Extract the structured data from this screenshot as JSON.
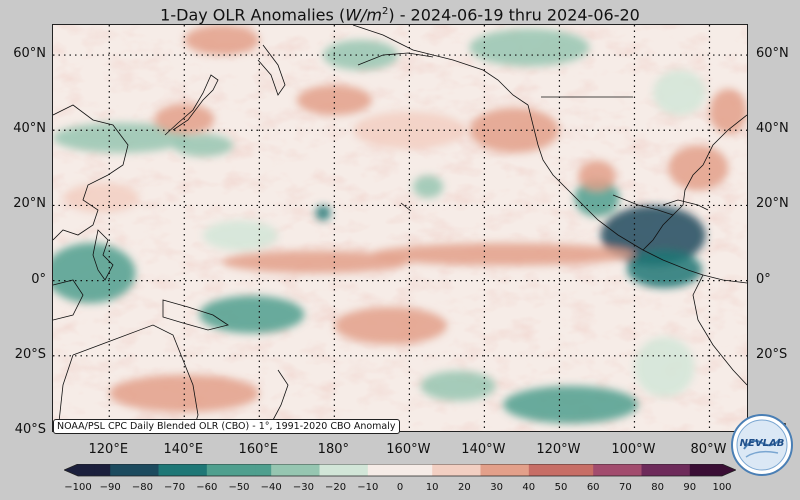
{
  "title": {
    "prefix": "1-Day OLR Anomalies (",
    "unit_base": "W/m",
    "unit_exp": "2",
    "suffix": ") - 2024-06-19 thru 2024-06-20"
  },
  "map": {
    "projection": "equirectangular",
    "lon_range": [
      105,
      290
    ],
    "lat_range": [
      -40,
      68
    ],
    "gridlines": "dotted",
    "source_note": "NOAA/PSL CPC Daily Blended OLR (CBO) - 1°, 1991-2020 CBO Anomaly",
    "lat_ticks": [
      {
        "lat": 60,
        "label": "60°N"
      },
      {
        "lat": 40,
        "label": "40°N"
      },
      {
        "lat": 20,
        "label": "20°N"
      },
      {
        "lat": 0,
        "label": "0°"
      },
      {
        "lat": -20,
        "label": "20°S"
      },
      {
        "lat": -40,
        "label": "40°S"
      }
    ],
    "lon_ticks": [
      {
        "lon": 120,
        "label": "120°E"
      },
      {
        "lon": 140,
        "label": "140°E"
      },
      {
        "lon": 160,
        "label": "160°E"
      },
      {
        "lon": 180,
        "label": "180°"
      },
      {
        "lon": 200,
        "label": "160°W"
      },
      {
        "lon": 220,
        "label": "140°W"
      },
      {
        "lon": 240,
        "label": "120°W"
      },
      {
        "lon": 260,
        "label": "100°W"
      },
      {
        "lon": 280,
        "label": "80°W"
      }
    ],
    "anomaly_regions": [
      {
        "lon": 265,
        "lat": 12,
        "rx": 14,
        "ry": 8,
        "value": -80
      },
      {
        "lon": 250,
        "lat": 22,
        "rx": 6,
        "ry": 5,
        "value": -50
      },
      {
        "lon": 268,
        "lat": 3,
        "rx": 10,
        "ry": 5,
        "value": -60
      },
      {
        "lon": 158,
        "lat": -9,
        "rx": 14,
        "ry": 5,
        "value": -50
      },
      {
        "lon": 115,
        "lat": 2,
        "rx": 12,
        "ry": 8,
        "value": -50
      },
      {
        "lon": 177,
        "lat": 18,
        "rx": 2,
        "ry": 2,
        "value": -60
      },
      {
        "lon": 123,
        "lat": 38,
        "rx": 18,
        "ry": 4,
        "value": -40
      },
      {
        "lon": 145,
        "lat": 36,
        "rx": 8,
        "ry": 3,
        "value": -40
      },
      {
        "lon": 243,
        "lat": -33,
        "rx": 18,
        "ry": 5,
        "value": -45
      },
      {
        "lon": 213,
        "lat": -28,
        "rx": 10,
        "ry": 4,
        "value": -35
      },
      {
        "lon": 187,
        "lat": 60,
        "rx": 10,
        "ry": 4,
        "value": -30
      },
      {
        "lon": 232,
        "lat": 62,
        "rx": 16,
        "ry": 5,
        "value": -30
      },
      {
        "lon": 205,
        "lat": 25,
        "rx": 4,
        "ry": 3,
        "value": -30
      },
      {
        "lon": 272,
        "lat": 50,
        "rx": 7,
        "ry": 6,
        "value": -20
      },
      {
        "lon": 268,
        "lat": -23,
        "rx": 8,
        "ry": 8,
        "value": -20
      },
      {
        "lon": 155,
        "lat": 12,
        "rx": 10,
        "ry": 4,
        "value": -20
      },
      {
        "lon": 175,
        "lat": 5,
        "rx": 25,
        "ry": 3,
        "value": 40
      },
      {
        "lon": 225,
        "lat": 7,
        "rx": 35,
        "ry": 3,
        "value": 35
      },
      {
        "lon": 150,
        "lat": 64,
        "rx": 10,
        "ry": 4,
        "value": 40
      },
      {
        "lon": 140,
        "lat": 43,
        "rx": 8,
        "ry": 4,
        "value": 30
      },
      {
        "lon": 277,
        "lat": 30,
        "rx": 8,
        "ry": 6,
        "value": 35
      },
      {
        "lon": 285,
        "lat": 45,
        "rx": 5,
        "ry": 6,
        "value": 30
      },
      {
        "lon": 228,
        "lat": 40,
        "rx": 12,
        "ry": 6,
        "value": 25
      },
      {
        "lon": 140,
        "lat": -30,
        "rx": 20,
        "ry": 5,
        "value": 25
      },
      {
        "lon": 195,
        "lat": -12,
        "rx": 15,
        "ry": 5,
        "value": 25
      },
      {
        "lon": 200,
        "lat": 40,
        "rx": 15,
        "ry": 5,
        "value": 20
      },
      {
        "lon": 180,
        "lat": 48,
        "rx": 10,
        "ry": 4,
        "value": 25
      },
      {
        "lon": 118,
        "lat": 22,
        "rx": 10,
        "ry": 4,
        "value": 20
      },
      {
        "lon": 250,
        "lat": 28,
        "rx": 5,
        "ry": 4,
        "value": 30
      }
    ]
  },
  "colorbar": {
    "min": -100,
    "max": 100,
    "step": 5,
    "ticks": [
      "−100",
      "−90",
      "−80",
      "−70",
      "−60",
      "−50",
      "−40",
      "−30",
      "−20",
      "−10",
      "0",
      "10",
      "20",
      "30",
      "40",
      "50",
      "60",
      "70",
      "80",
      "90",
      "100"
    ],
    "colors": [
      "#1b1f3c",
      "#1c4a5e",
      "#1e7776",
      "#4f9f8e",
      "#96c6b1",
      "#d2e6d8",
      "#f6ece7",
      "#f2cfc2",
      "#e3a08a",
      "#c76e66",
      "#a24c6e",
      "#6d2a5a",
      "#3a0e35"
    ]
  },
  "logo": {
    "name": "NEVLAB"
  }
}
